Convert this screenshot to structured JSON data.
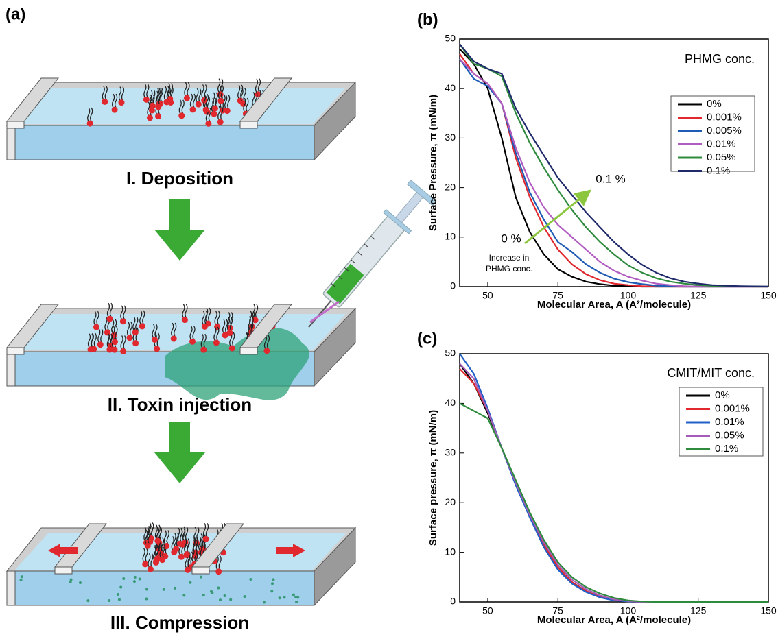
{
  "panel_a": {
    "label": "(a)",
    "steps": [
      "I.  Deposition",
      "II. Toxin injection",
      "III. Compression"
    ]
  },
  "chart_data": [
    {
      "type": "line",
      "label": "(b)",
      "x_label": "Molecular Area, A (A²/molecule)",
      "y_label": "Surface Pressure, π (mN/m)",
      "legend_title": "PHMG conc.",
      "annotations": [
        "0.1 %",
        "0 %",
        "Increase in",
        "PHMG conc."
      ],
      "xlim": [
        40,
        150
      ],
      "ylim": [
        0,
        50
      ],
      "xticks": [
        50,
        75,
        100,
        125,
        150
      ],
      "yticks": [
        0,
        10,
        20,
        30,
        40,
        50
      ],
      "x": [
        40,
        45,
        50,
        55,
        60,
        65,
        70,
        75,
        80,
        85,
        90,
        95,
        100,
        105,
        110,
        115,
        120,
        125,
        130,
        135,
        140,
        145,
        150
      ],
      "series": [
        {
          "name": "0%",
          "color": "#000000",
          "values": [
            48,
            45,
            40,
            30,
            18,
            11,
            6.5,
            3.5,
            2,
            1,
            0.5,
            0.2,
            0.1,
            0,
            0,
            0,
            0,
            0,
            0,
            0,
            0,
            0,
            0
          ]
        },
        {
          "name": "0.001%",
          "color": "#e0282e",
          "values": [
            47,
            43,
            41,
            37,
            26,
            18,
            12,
            7.5,
            4.5,
            2.5,
            1.3,
            0.6,
            0.3,
            0.1,
            0,
            0,
            0,
            0,
            0,
            0,
            0,
            0,
            0
          ]
        },
        {
          "name": "0.005%",
          "color": "#1f5bb5",
          "values": [
            46,
            42,
            40.5,
            37,
            27,
            19,
            13.5,
            9,
            7,
            4.5,
            2.8,
            1.6,
            0.9,
            0.5,
            0.2,
            0.1,
            0,
            0,
            0,
            0,
            0,
            0,
            0
          ]
        },
        {
          "name": "0.01%",
          "color": "#b05cc0",
          "values": [
            46,
            43,
            41,
            37,
            28,
            21,
            16,
            12.5,
            10,
            7.5,
            5,
            3.2,
            2,
            1.2,
            0.6,
            0.3,
            0.1,
            0,
            0,
            0,
            0,
            0,
            0
          ]
        },
        {
          "name": "0.05%",
          "color": "#2e8b3e",
          "values": [
            49,
            45,
            44,
            42.5,
            35,
            29,
            24,
            19.5,
            15.5,
            12,
            9,
            6.5,
            4.3,
            2.8,
            1.7,
            1,
            0.6,
            0.3,
            0.15,
            0.1,
            0.05,
            0,
            0
          ]
        },
        {
          "name": "0.1%",
          "color": "#1f2a6b",
          "values": [
            49,
            45.5,
            44,
            43,
            36,
            31,
            26.5,
            22,
            18.5,
            15,
            12,
            9,
            6.5,
            4.4,
            2.8,
            1.7,
            1,
            0.6,
            0.3,
            0.2,
            0.1,
            0.05,
            0
          ]
        }
      ]
    },
    {
      "type": "line",
      "label": "(c)",
      "x_label": "Molecular Area, A (A²/molecule)",
      "y_label": "Surface pressure, π (mN/m)",
      "legend_title": "CMIT/MIT conc.",
      "xlim": [
        40,
        150
      ],
      "ylim": [
        0,
        50
      ],
      "xticks": [
        50,
        75,
        100,
        125,
        150
      ],
      "yticks": [
        0,
        10,
        20,
        30,
        40,
        50
      ],
      "x": [
        40,
        45,
        50,
        55,
        60,
        65,
        70,
        75,
        80,
        85,
        90,
        95,
        100,
        105,
        110,
        115,
        120,
        125,
        130,
        135,
        140,
        145,
        150
      ],
      "series": [
        {
          "name": "0%",
          "color": "#000000",
          "values": [
            48,
            44,
            38,
            31,
            24,
            17,
            11.5,
            7,
            4,
            2.2,
            1,
            0.4,
            0.1,
            0,
            0,
            0,
            0,
            0,
            0,
            0,
            0,
            0,
            0
          ]
        },
        {
          "name": "0.001%",
          "color": "#e0282e",
          "values": [
            47,
            44,
            38.5,
            31,
            24,
            17.5,
            11.5,
            7,
            4,
            2.2,
            1,
            0.4,
            0.1,
            0,
            0,
            0,
            0,
            0,
            0,
            0,
            0,
            0,
            0
          ]
        },
        {
          "name": "0.01%",
          "color": "#2260c9",
          "values": [
            50,
            46,
            39,
            31,
            23.5,
            17,
            11,
            6.5,
            3.7,
            2,
            0.9,
            0.3,
            0.1,
            0,
            0,
            0,
            0,
            0,
            0,
            0,
            0,
            0,
            0
          ]
        },
        {
          "name": "0.05%",
          "color": "#a55bb8",
          "values": [
            48,
            45,
            38.5,
            31,
            24,
            17.5,
            12,
            7.5,
            4.5,
            2.6,
            1.3,
            0.5,
            0.2,
            0,
            0,
            0,
            0,
            0,
            0,
            0,
            0,
            0,
            0
          ]
        },
        {
          "name": "0.1%",
          "color": "#2e8b3e",
          "values": [
            40,
            38.5,
            37,
            31,
            24.5,
            18,
            12.5,
            8,
            5,
            3,
            1.7,
            0.8,
            0.3,
            0.1,
            0,
            0,
            0,
            0,
            0,
            0,
            0,
            0,
            0
          ]
        }
      ]
    }
  ]
}
